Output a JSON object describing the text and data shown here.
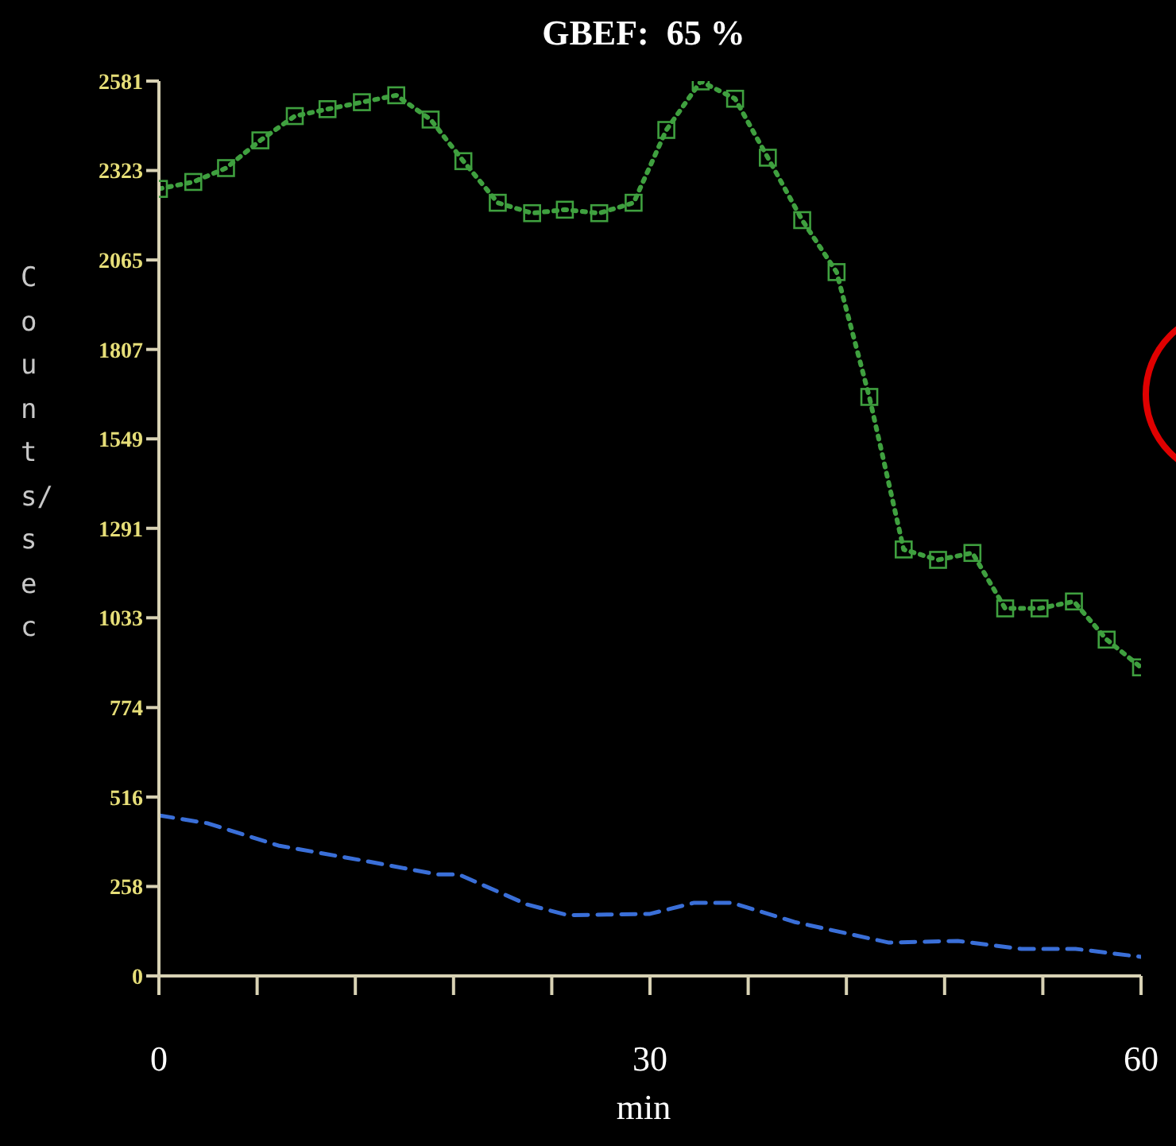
{
  "chart_data": {
    "type": "line",
    "title": "GBEF:  65 %",
    "xlabel": "min",
    "ylabel": "Counts/sec",
    "xlim": [
      0,
      60
    ],
    "xticks": [
      0,
      {
        "value": 6,
        "label": null
      },
      {
        "value": 12,
        "label": null
      },
      {
        "value": 18,
        "label": null
      },
      {
        "value": 24,
        "label": null
      },
      30,
      {
        "value": 36,
        "label": null
      },
      {
        "value": 42,
        "label": null
      },
      {
        "value": 48,
        "label": null
      },
      {
        "value": 54,
        "label": null
      },
      60
    ],
    "ylim": [
      0,
      2581
    ],
    "yticks": [
      0,
      258,
      516,
      774,
      1033,
      1291,
      1549,
      1807,
      2065,
      2323,
      2581
    ],
    "grid": false,
    "legend": false,
    "series": [
      {
        "color": "#3fa03f",
        "marker": "square",
        "line_style": "dotted",
        "x": [
          0,
          2.1,
          4.1,
          6.2,
          8.3,
          10.3,
          12.4,
          14.5,
          16.6,
          18.6,
          20.7,
          22.8,
          24.8,
          26.9,
          29,
          31,
          33.1,
          35.2,
          37.2,
          39.3,
          41.4,
          43.4,
          45.5,
          47.6,
          49.7,
          51.7,
          53.8,
          55.9,
          57.9,
          60
        ],
        "values": [
          2270,
          2290,
          2330,
          2410,
          2480,
          2500,
          2520,
          2540,
          2470,
          2350,
          2230,
          2200,
          2210,
          2200,
          2230,
          2440,
          2580,
          2530,
          2360,
          2180,
          2030,
          1670,
          1230,
          1200,
          1220,
          1060,
          1060,
          1080,
          970,
          890
        ]
      },
      {
        "color": "#3a6fd8",
        "marker": "none",
        "line_style": "dashed",
        "x": [
          0,
          3,
          7.3,
          12.8,
          17,
          18.3,
          22.5,
          25,
          30,
          32.7,
          35,
          38.8,
          44.6,
          48.8,
          52.7,
          56,
          60
        ],
        "values": [
          463,
          440,
          376,
          330,
          293,
          293,
          206,
          175,
          179,
          211,
          211,
          156,
          96,
          101,
          78,
          78,
          55
        ]
      }
    ]
  }
}
